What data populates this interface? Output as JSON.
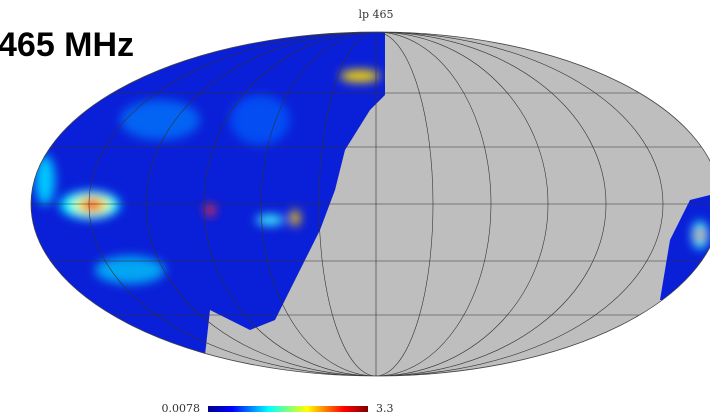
{
  "title": "lp 465",
  "label": "465 MHz",
  "colorbar": {
    "min": 0.0078,
    "max": 3.3
  }
}
